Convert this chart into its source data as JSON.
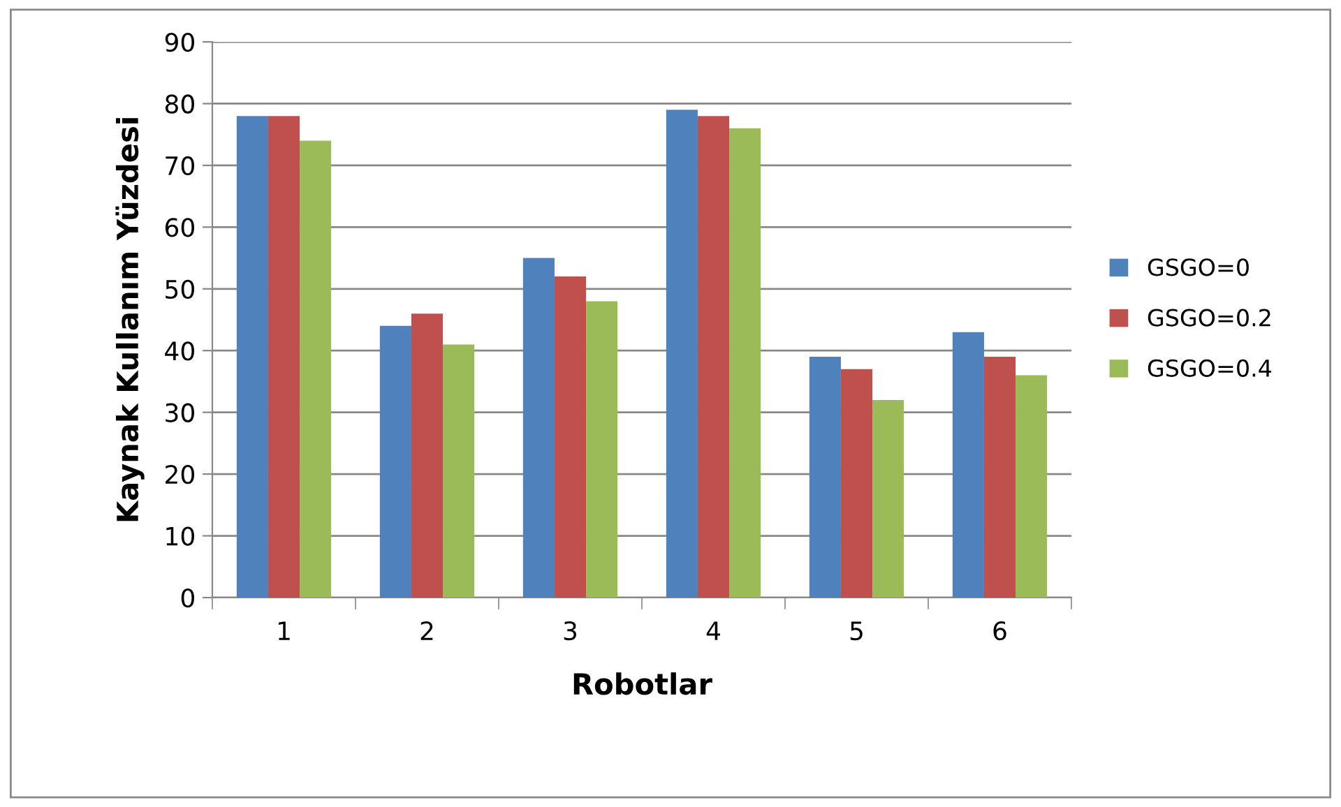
{
  "chart_data": {
    "type": "bar",
    "xlabel": "Robotlar",
    "ylabel": "Kaynak Kullanım Yüzdesi",
    "categories": [
      "1",
      "2",
      "3",
      "4",
      "5",
      "6"
    ],
    "series": [
      {
        "name": "GSGO=0",
        "color": "#4f81bd",
        "values": [
          78,
          44,
          55,
          79,
          39,
          43
        ]
      },
      {
        "name": "GSGO=0.2",
        "color": "#c0504d",
        "values": [
          78,
          46,
          52,
          78,
          37,
          39
        ]
      },
      {
        "name": "GSGO=0.4",
        "color": "#9bbb59",
        "values": [
          74,
          41,
          48,
          76,
          32,
          36
        ]
      }
    ],
    "ylim": [
      0,
      90
    ],
    "yticks": [
      0,
      10,
      20,
      30,
      40,
      50,
      60,
      70,
      80,
      90
    ],
    "grid": "y",
    "legend": "right"
  }
}
